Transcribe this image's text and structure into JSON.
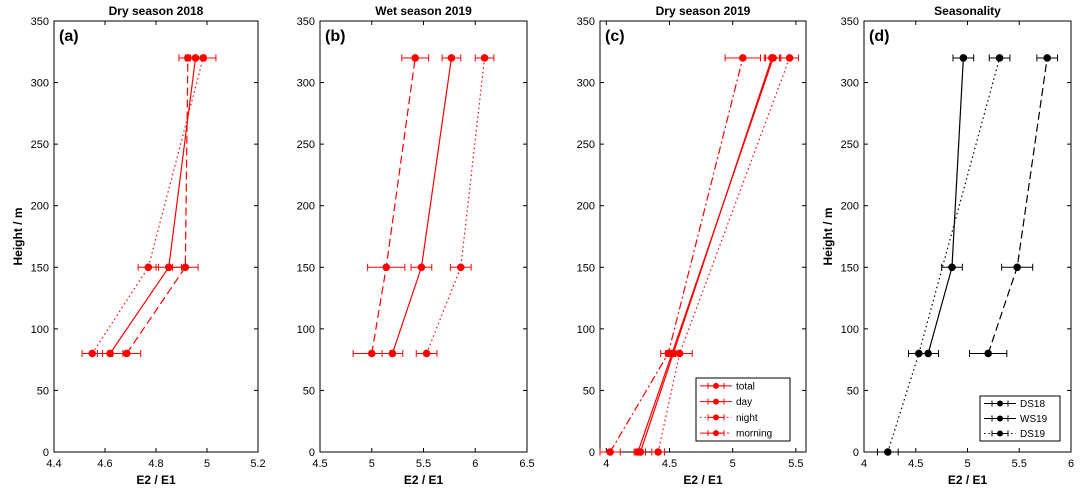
{
  "chart_data": [
    {
      "type": "line",
      "panel_label": "(a)",
      "title": "Dry season 2018",
      "xlabel": "E2 / E1",
      "ylabel": "Height / m",
      "xlim": [
        4.4,
        5.2
      ],
      "ylim": [
        0,
        350
      ],
      "xticks": [
        "4.4",
        "4.6",
        "4.8",
        "5",
        "5.2"
      ],
      "yticks": [
        "0",
        "50",
        "100",
        "150",
        "200",
        "250",
        "300",
        "350"
      ],
      "color": "#ff0000",
      "series": [
        {
          "style": "solid",
          "points": [
            {
              "x": 4.62,
              "y": 80,
              "err": 0.05
            },
            {
              "x": 4.85,
              "y": 150,
              "err": 0.05
            },
            {
              "x": 4.955,
              "y": 320,
              "err": 0.04
            }
          ]
        },
        {
          "style": "dotted",
          "points": [
            {
              "x": 4.55,
              "y": 80,
              "err": 0.04
            },
            {
              "x": 4.77,
              "y": 150,
              "err": 0.04
            },
            {
              "x": 4.985,
              "y": 320,
              "err": 0.05
            }
          ]
        },
        {
          "style": "dashed",
          "points": [
            {
              "x": 4.685,
              "y": 80,
              "err": 0.055
            },
            {
              "x": 4.915,
              "y": 150,
              "err": 0.05
            },
            {
              "x": 4.925,
              "y": 320,
              "err": 0.035
            }
          ]
        }
      ]
    },
    {
      "type": "line",
      "panel_label": "(b)",
      "title": "Wet season 2019",
      "xlabel": "E2 / E1",
      "ylabel": "",
      "xlim": [
        4.5,
        6.5
      ],
      "ylim": [
        0,
        350
      ],
      "xticks": [
        "4.5",
        "5",
        "5.5",
        "6",
        "6.5"
      ],
      "yticks": [
        "0",
        "50",
        "100",
        "150",
        "200",
        "250",
        "300",
        "350"
      ],
      "color": "#ff0000",
      "series": [
        {
          "style": "solid",
          "points": [
            {
              "x": 5.2,
              "y": 80,
              "err": 0.1
            },
            {
              "x": 5.48,
              "y": 150,
              "err": 0.1
            },
            {
              "x": 5.77,
              "y": 320,
              "err": 0.09
            }
          ]
        },
        {
          "style": "dotted",
          "points": [
            {
              "x": 5.53,
              "y": 80,
              "err": 0.1
            },
            {
              "x": 5.86,
              "y": 150,
              "err": 0.1
            },
            {
              "x": 6.09,
              "y": 320,
              "err": 0.09
            }
          ]
        },
        {
          "style": "dashed",
          "points": [
            {
              "x": 5.0,
              "y": 80,
              "err": 0.18
            },
            {
              "x": 5.14,
              "y": 150,
              "err": 0.18
            },
            {
              "x": 5.42,
              "y": 320,
              "err": 0.13
            }
          ]
        }
      ]
    },
    {
      "type": "line",
      "panel_label": "(c)",
      "title": "Dry season 2019",
      "xlabel": "E2 / E1",
      "ylabel": "",
      "xlim": [
        3.95,
        5.58
      ],
      "ylim": [
        0,
        350
      ],
      "xticks": [
        "4",
        "4.5",
        "5",
        "5.5"
      ],
      "yticks": [
        "0",
        "50",
        "100",
        "150",
        "200",
        "250",
        "300",
        "350"
      ],
      "color": "#ff0000",
      "legend": [
        "total",
        "day",
        "night",
        "morning"
      ],
      "series": [
        {
          "name": "total",
          "style": "solid",
          "points": [
            {
              "x": 4.27,
              "y": 0,
              "err": 0.04
            },
            {
              "x": 4.53,
              "y": 80,
              "err": 0.05
            },
            {
              "x": 5.31,
              "y": 320,
              "err": 0.06
            }
          ]
        },
        {
          "name": "day",
          "style": "solid",
          "points": [
            {
              "x": 4.25,
              "y": 0,
              "err": 0.03
            },
            {
              "x": 4.52,
              "y": 80,
              "err": 0.05
            },
            {
              "x": 5.32,
              "y": 320,
              "err": 0.06
            }
          ]
        },
        {
          "name": "night",
          "style": "dotted",
          "points": [
            {
              "x": 4.41,
              "y": 0,
              "err": 0.05
            },
            {
              "x": 4.58,
              "y": 80,
              "err": 0.1
            },
            {
              "x": 5.45,
              "y": 320,
              "err": 0.07
            }
          ]
        },
        {
          "name": "morning",
          "style": "dashdot",
          "points": [
            {
              "x": 4.03,
              "y": 0,
              "err": 0.08
            },
            {
              "x": 4.49,
              "y": 80,
              "err": 0.06
            },
            {
              "x": 5.08,
              "y": 320,
              "err": 0.14
            }
          ]
        }
      ]
    },
    {
      "type": "line",
      "panel_label": "(d)",
      "title": "Seasonality",
      "xlabel": "E2 / E1",
      "ylabel": "Height / m",
      "xlim": [
        4,
        6
      ],
      "ylim": [
        0,
        350
      ],
      "xticks": [
        "4",
        "4.5",
        "5",
        "5.5",
        "6"
      ],
      "yticks": [
        "0",
        "50",
        "100",
        "150",
        "200",
        "250",
        "300",
        "350"
      ],
      "color": "#000000",
      "legend": [
        "DS18",
        "WS19",
        "DS19"
      ],
      "series": [
        {
          "name": "DS18",
          "style": "solid",
          "points": [
            {
              "x": 4.62,
              "y": 80,
              "err": 0.1
            },
            {
              "x": 4.85,
              "y": 150,
              "err": 0.1
            },
            {
              "x": 4.96,
              "y": 320,
              "err": 0.1
            }
          ]
        },
        {
          "name": "WS19",
          "style": "dashed",
          "points": [
            {
              "x": 5.2,
              "y": 80,
              "err": 0.18
            },
            {
              "x": 5.48,
              "y": 150,
              "err": 0.15
            },
            {
              "x": 5.77,
              "y": 320,
              "err": 0.1
            }
          ]
        },
        {
          "name": "DS19",
          "style": "dotted",
          "points": [
            {
              "x": 4.23,
              "y": 0,
              "err": 0.1
            },
            {
              "x": 4.53,
              "y": 80,
              "err": 0.1
            },
            {
              "x": 5.31,
              "y": 320,
              "err": 0.1
            }
          ]
        }
      ]
    }
  ]
}
